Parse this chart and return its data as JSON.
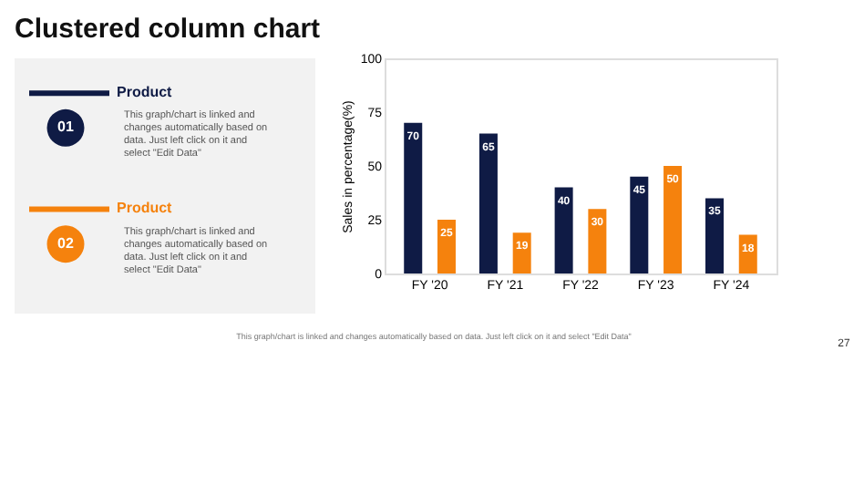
{
  "chart_data": {
    "type": "bar",
    "title": "Clustered column chart",
    "ylabel": "Sales in percentage(%)",
    "categories": [
      "FY '20",
      "FY '21",
      "FY '22",
      "FY '23",
      "FY '24"
    ],
    "series": [
      {
        "name": "Product",
        "color": "#0f1b45",
        "values": [
          70,
          65,
          40,
          45,
          35
        ]
      },
      {
        "name": "Product",
        "color": "#f5820d",
        "values": [
          25,
          19,
          30,
          50,
          18
        ]
      }
    ],
    "ylim": [
      0,
      100
    ],
    "yticks": [
      0,
      25,
      50,
      75,
      100
    ],
    "data_labels": true,
    "legend": "left",
    "annotations": [
      "01",
      "02",
      "This graph/chart is linked and changes automatically based on data. Just left click on it and select \"Edit Data\"",
      "This graph/chart is linked and changes automatically based on data. Just left click on it and select \"Edit Data\"",
      "This graph/chart is linked and changes automatically based on data. Just left click on it and select \"Edit Data\"",
      "27"
    ]
  }
}
